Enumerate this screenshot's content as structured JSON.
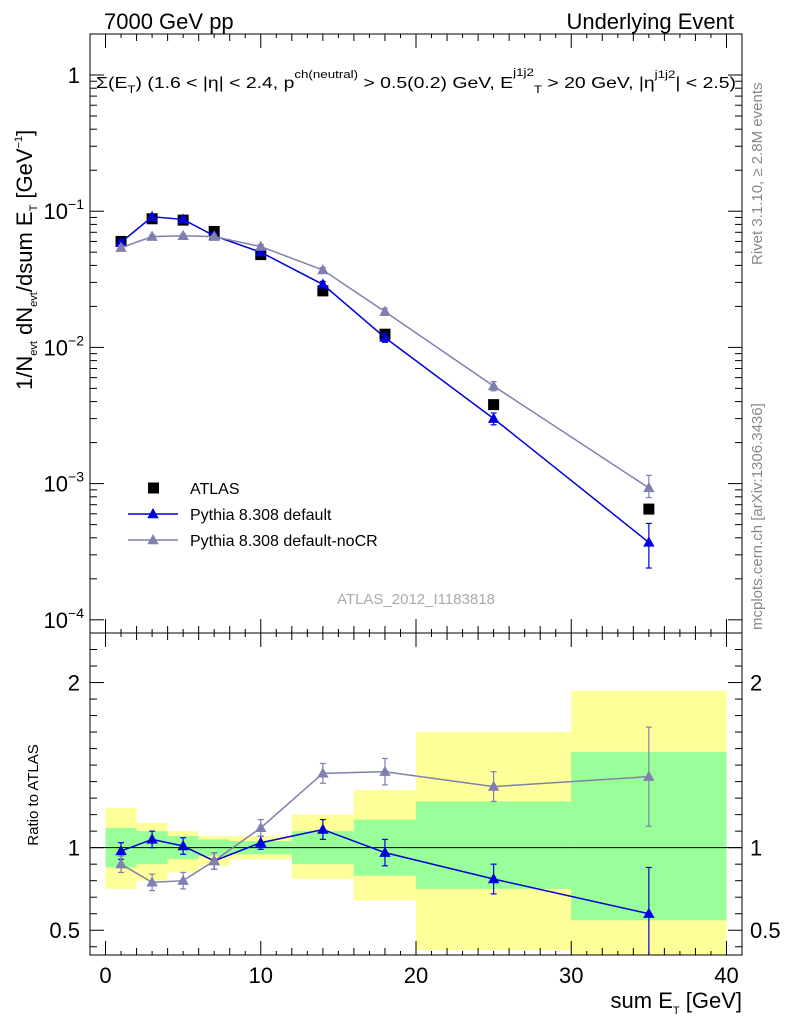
{
  "header": {
    "left": "7000 GeV pp",
    "right": "Underlying Event"
  },
  "side_labels": {
    "rivet": "Rivet 3.1.10, ≥ 2.8M events",
    "mcplots": "mcplots.cern.ch [arXiv:1306.3436]"
  },
  "watermark": "ATLAS_2012_I1183818",
  "chart_data": [
    {
      "type": "scatter",
      "panel": "main",
      "title": "Σ(E_T) (1.6 < |η| < 2.4, p_T^ch(neutral) > 0.5(0.2) GeV, E_T^j1j2 > 20 GeV, |η^j1j2| < 2.5)",
      "ylabel": "1/N_evt dN_evt/dsum E_T [GeV^-1]",
      "yscale": "log",
      "xlim": [
        -1,
        41
      ],
      "ylim": [
        8e-05,
        2
      ],
      "y_tick_labels": [
        "10^-4",
        "10^-3",
        "10^-2",
        "10^-1",
        "1"
      ],
      "legend_position": "bottom-left",
      "series": [
        {
          "name": "ATLAS",
          "color": "#000000",
          "marker": "square",
          "x": [
            1,
            3,
            5,
            7,
            10,
            14,
            18,
            25,
            35
          ],
          "y": [
            0.06,
            0.088,
            0.086,
            0.071,
            0.048,
            0.026,
            0.0125,
            0.0038,
            0.00065
          ]
        },
        {
          "name": "Pythia 8.308 default",
          "color": "#0000dd",
          "marker": "triangle",
          "x": [
            1,
            3,
            5,
            7,
            10,
            14,
            18,
            25,
            35
          ],
          "y": [
            0.059,
            0.091,
            0.087,
            0.066,
            0.05,
            0.029,
            0.0118,
            0.003,
            0.00037
          ],
          "yerr_low": [
            0.002,
            0.004,
            0.003,
            0.003,
            0.002,
            0.0015,
            0.0009,
            0.0003,
            0.00013
          ],
          "yerr_high": [
            0.002,
            0.004,
            0.003,
            0.003,
            0.002,
            0.0015,
            0.0009,
            0.0003,
            0.00014
          ]
        },
        {
          "name": "Pythia 8.308 default-noCR",
          "color": "#8080b0",
          "marker": "triangle",
          "x": [
            1,
            3,
            5,
            7,
            10,
            14,
            18,
            25,
            35
          ],
          "y": [
            0.054,
            0.065,
            0.066,
            0.065,
            0.055,
            0.037,
            0.0183,
            0.0052,
            0.00093
          ],
          "yerr_low": [
            0.002,
            0.002,
            0.002,
            0.002,
            0.002,
            0.0015,
            0.0011,
            0.0004,
            0.00014
          ],
          "yerr_high": [
            0.002,
            0.002,
            0.002,
            0.002,
            0.002,
            0.0015,
            0.0011,
            0.0004,
            0.00022
          ]
        }
      ]
    },
    {
      "type": "scatter",
      "panel": "ratio",
      "ylabel": "Ratio to ATLAS",
      "xlabel": "sum E_T [GeV]",
      "xlim": [
        -1,
        41
      ],
      "ylim": [
        0.35,
        2.3
      ],
      "x_ticks": [
        0,
        10,
        20,
        30,
        40
      ],
      "y_ticks": [
        0.5,
        1,
        2
      ],
      "bands": {
        "bin_edges": [
          0,
          2,
          4,
          6,
          8,
          12,
          16,
          20,
          30,
          40
        ],
        "stat_color": "#99ff99",
        "total_color": "#ffff99",
        "stat_low": [
          0.88,
          0.9,
          0.93,
          0.95,
          0.96,
          0.9,
          0.83,
          0.75,
          0.56
        ],
        "stat_high": [
          1.12,
          1.1,
          1.07,
          1.05,
          1.04,
          1.1,
          1.17,
          1.28,
          1.58
        ],
        "total_low": [
          0.75,
          0.8,
          0.85,
          0.89,
          0.93,
          0.81,
          0.68,
          0.38,
          0.33
        ],
        "total_high": [
          1.24,
          1.15,
          1.1,
          1.07,
          1.07,
          1.2,
          1.35,
          1.7,
          1.95
        ]
      },
      "series": [
        {
          "name": "Pythia 8.308 default",
          "color": "#0000dd",
          "x": [
            1,
            3,
            5,
            7,
            10,
            14,
            18,
            25,
            35
          ],
          "y": [
            0.98,
            1.05,
            1.01,
            0.92,
            1.03,
            1.11,
            0.97,
            0.81,
            0.6
          ],
          "yerr": [
            0.05,
            0.05,
            0.05,
            0.05,
            0.04,
            0.06,
            0.08,
            0.09,
            0.28
          ]
        },
        {
          "name": "Pythia 8.308 default-noCR",
          "color": "#8080b0",
          "x": [
            1,
            3,
            5,
            7,
            10,
            14,
            18,
            25,
            35
          ],
          "y": [
            0.9,
            0.79,
            0.8,
            0.92,
            1.12,
            1.45,
            1.46,
            1.37,
            1.43
          ],
          "yerr": [
            0.05,
            0.05,
            0.05,
            0.05,
            0.05,
            0.06,
            0.08,
            0.09,
            0.3
          ]
        }
      ]
    }
  ]
}
